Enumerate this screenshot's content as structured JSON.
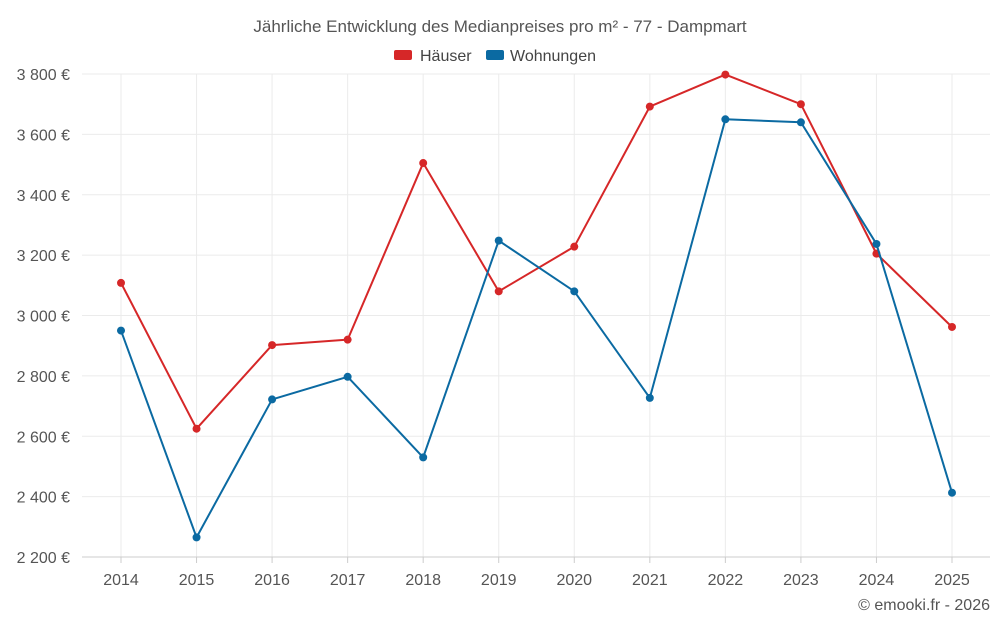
{
  "chart_data": {
    "type": "line",
    "title": "Jährliche Entwicklung des Medianpreises pro m² - 77 - Dampmart",
    "categories": [
      "2014",
      "2015",
      "2016",
      "2017",
      "2018",
      "2019",
      "2020",
      "2021",
      "2022",
      "2023",
      "2024",
      "2025"
    ],
    "series": [
      {
        "name": "Häuser",
        "color": "#d62728",
        "values": [
          3108,
          2625,
          2902,
          2920,
          3505,
          3080,
          3228,
          3692,
          3798,
          3700,
          3205,
          2962
        ]
      },
      {
        "name": "Wohnungen",
        "color": "#0b6aa2",
        "values": [
          2950,
          2265,
          2722,
          2797,
          2530,
          3248,
          3080,
          2727,
          3650,
          3640,
          3237,
          2413
        ]
      }
    ],
    "yticks": [
      2200,
      2400,
      2600,
      2800,
      3000,
      3200,
      3400,
      3600,
      3800
    ],
    "ytick_labels": [
      "2 200 €",
      "2 400 €",
      "2 600 €",
      "2 800 €",
      "3 000 €",
      "3 200 €",
      "3 400 €",
      "3 600 €",
      "3 800 €"
    ],
    "ylim": [
      2200,
      3800
    ],
    "xlabel": "",
    "ylabel": "",
    "legend_position": "top-center",
    "grid": true
  },
  "footer": {
    "credit": "© emooki.fr - 2026"
  }
}
